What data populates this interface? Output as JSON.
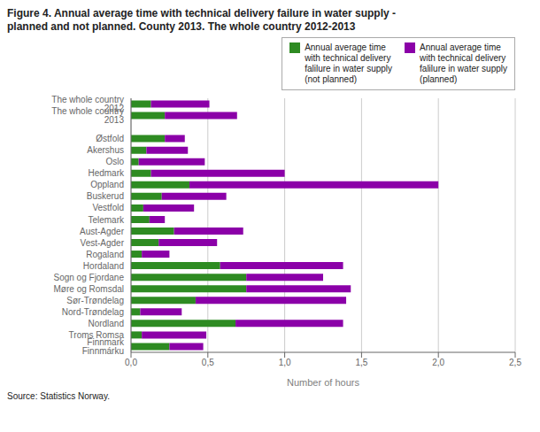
{
  "chart_data": {
    "type": "bar",
    "orientation": "horizontal",
    "stacked": true,
    "title": "Figure 4. Annual average time with technical delivery failure in water supply -\nplanned and not planned. County 2013. The whole country 2012-2013",
    "x_label": "Number of hours",
    "annotations": [
      "Source: Statistics Norway."
    ],
    "categories": [
      "The whole country 2012",
      "The whole country 2013",
      null,
      "Østfold",
      "Akershus",
      "Oslo",
      "Hedmark",
      "Oppland",
      "Buskerud",
      "Vestfold",
      "Telemark",
      "Aust-Agder",
      "Vest-Agder",
      "Rogaland",
      "Hordaland",
      "Sogn og Fjordane",
      "Møre og Romsdal",
      "Sør-Trøndelag",
      "Nord-Trøndelag",
      "Nordland",
      "Troms Romsa",
      "Finnmark Finnmárku"
    ],
    "series": [
      {
        "name": "Annual average time\nwith technical delivery\nfalilure in water supply\n(not planned)",
        "color": "#2e8b22",
        "values": [
          0.13,
          0.22,
          0.0,
          0.22,
          0.1,
          0.05,
          0.13,
          0.38,
          0.2,
          0.08,
          0.12,
          0.28,
          0.18,
          0.07,
          0.58,
          0.75,
          0.75,
          0.42,
          0.06,
          0.68,
          0.07,
          0.25
        ]
      },
      {
        "name": "Annual average time\nwith technical delivery\nfalilure in water supply\n(planned)",
        "color": "#8b00a8",
        "values": [
          0.38,
          0.47,
          0.0,
          0.13,
          0.27,
          0.43,
          0.87,
          1.62,
          0.42,
          0.33,
          0.1,
          0.45,
          0.38,
          0.18,
          0.8,
          0.5,
          0.68,
          0.98,
          0.27,
          0.7,
          0.42,
          0.22
        ]
      }
    ],
    "xlim": [
      0,
      2.5
    ],
    "xticks": [
      {
        "value": 0.0,
        "label": "0,0"
      },
      {
        "value": 0.5,
        "label": "0,5"
      },
      {
        "value": 1.0,
        "label": "1,0"
      },
      {
        "value": 1.5,
        "label": "1,5"
      },
      {
        "value": 2.0,
        "label": "2,0"
      },
      {
        "value": 2.5,
        "label": "2,5"
      }
    ],
    "grid": true,
    "legend": "upper right"
  }
}
